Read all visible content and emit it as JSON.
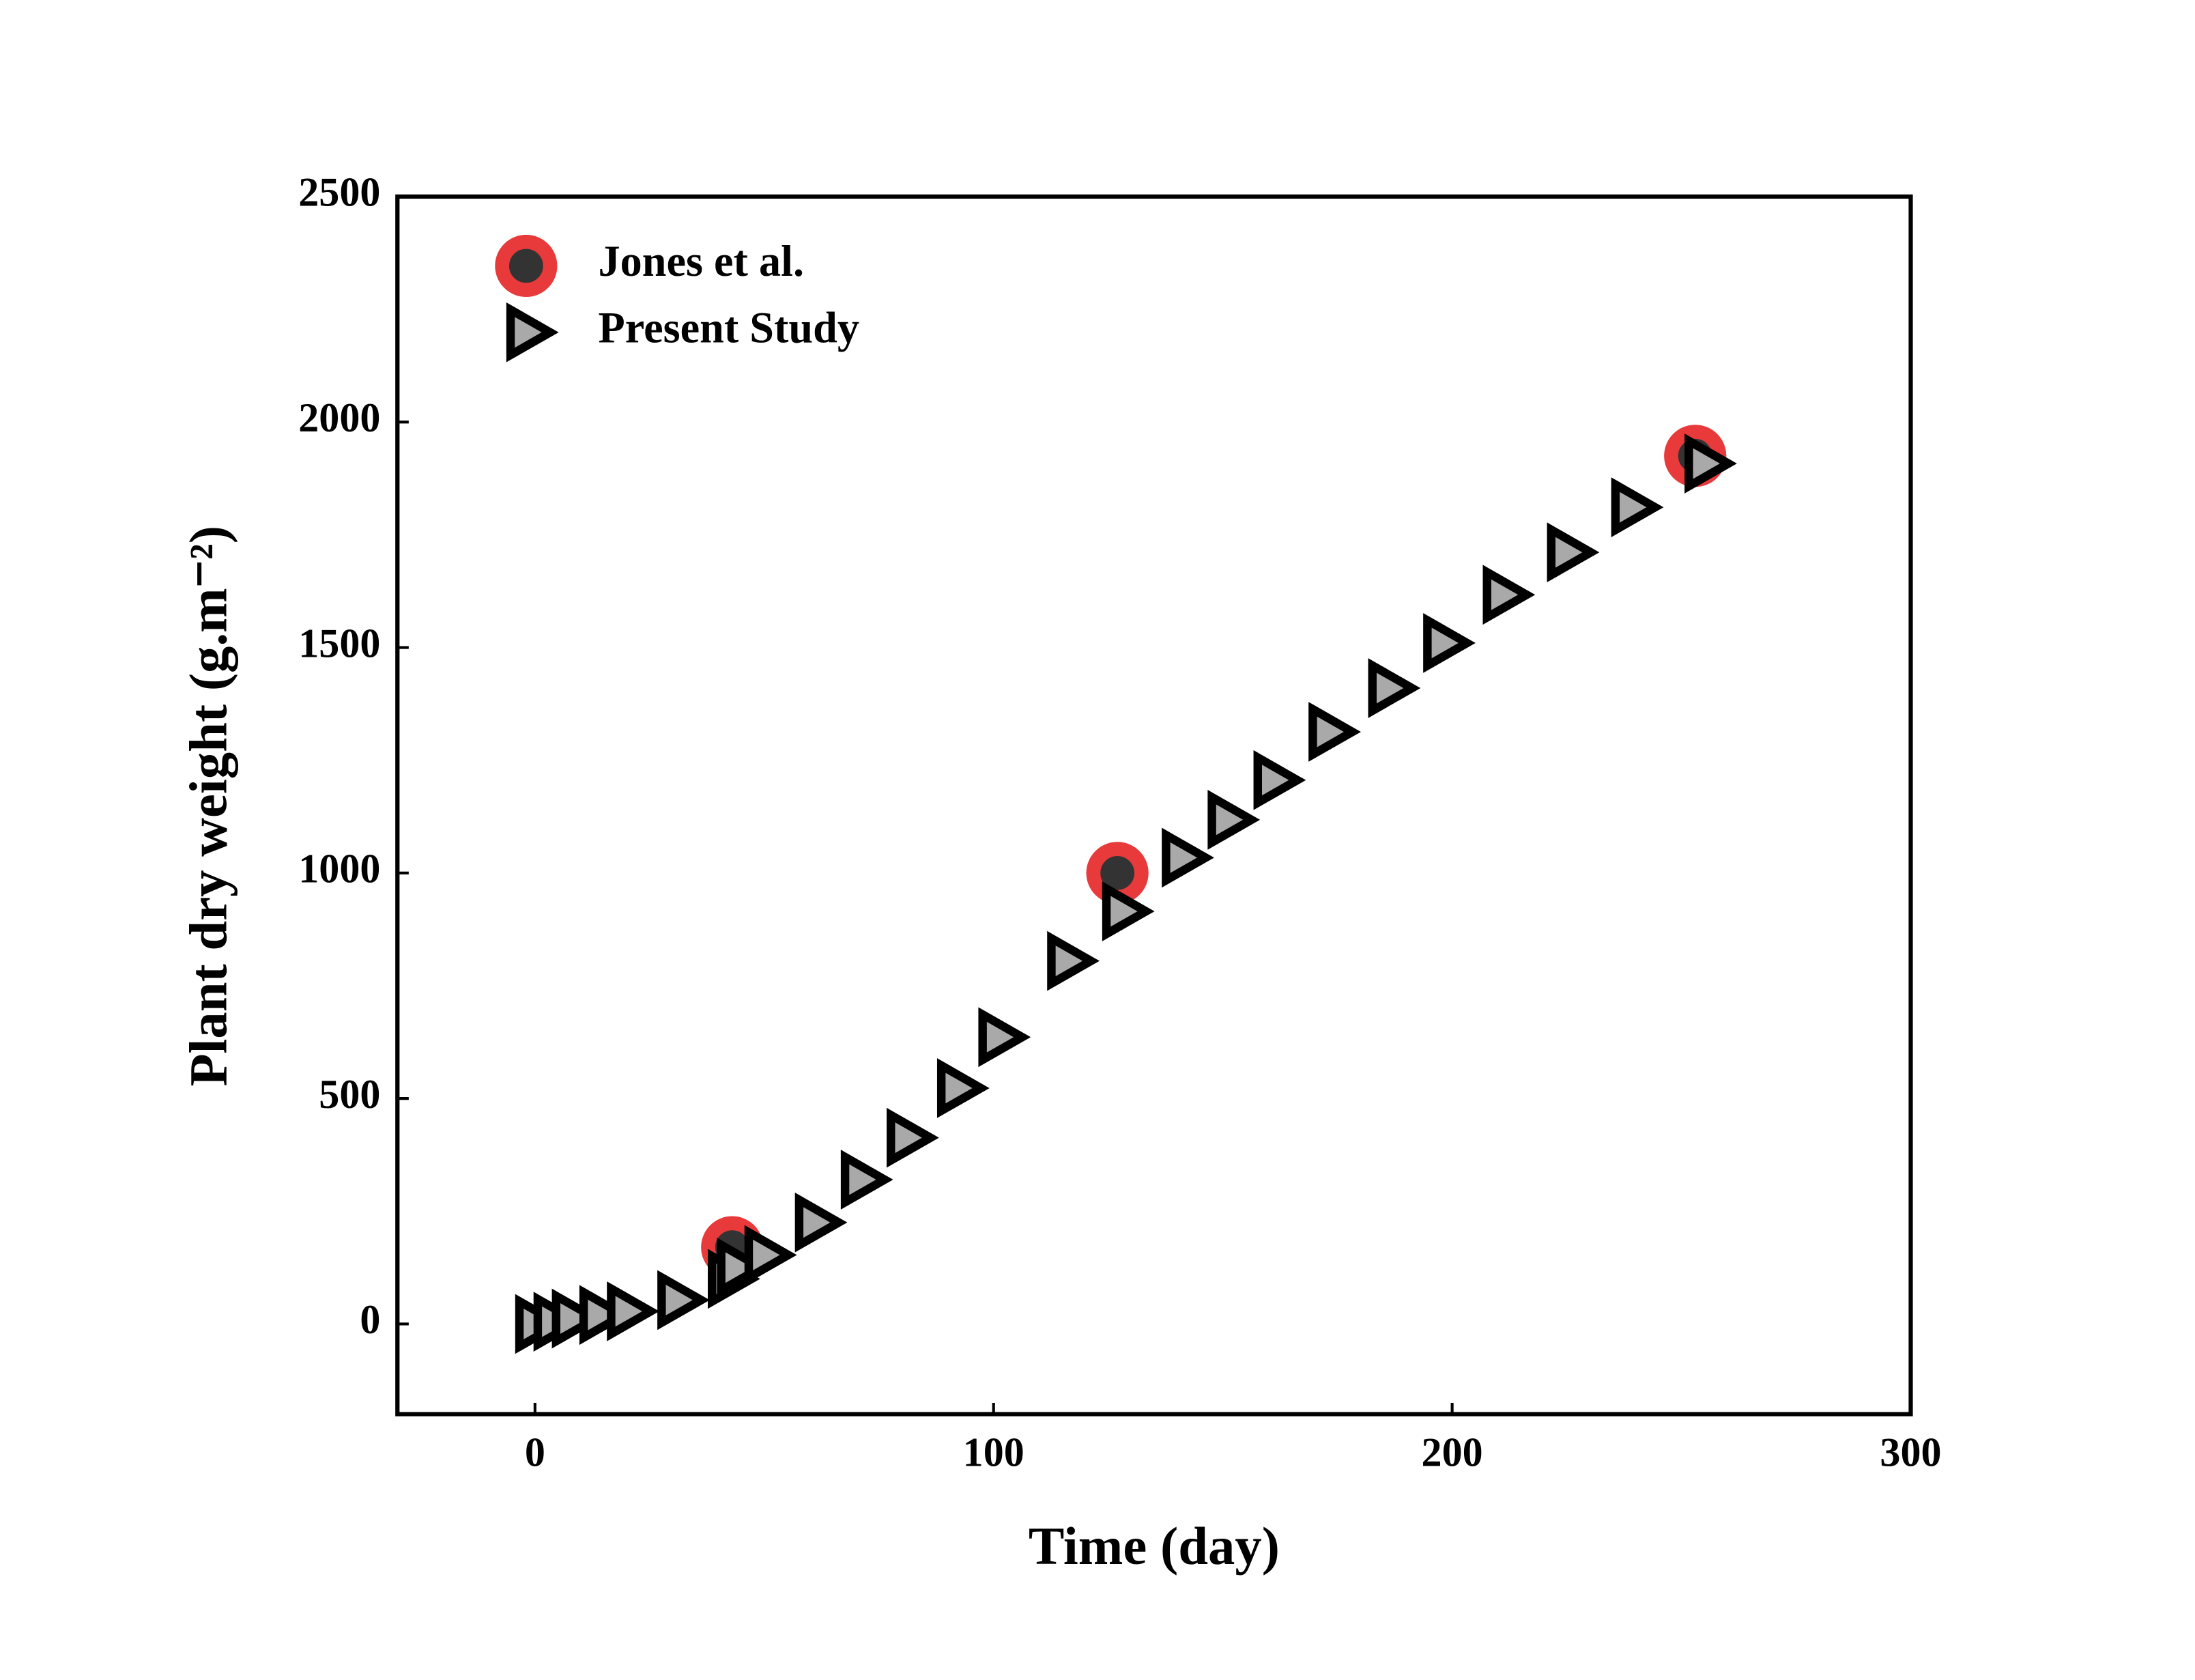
{
  "chart_data": {
    "type": "scatter",
    "x_label": "Time (day)",
    "y_label": "Plant dry weight (g.m⁻²)",
    "xlim": [
      -30,
      300
    ],
    "xticks": [
      0,
      100,
      200,
      300
    ],
    "ylim": [
      -200,
      2500
    ],
    "yticks": [
      0,
      500,
      1000,
      1500,
      2000,
      2500
    ],
    "legend": "upper-left",
    "series": [
      {
        "name": "Jones et al.",
        "color": "#e83a3a",
        "marker": "circle",
        "x": [
          43,
          127,
          253
        ],
        "values": [
          170,
          1000,
          1925
        ]
      },
      {
        "name": "Present Study",
        "color": "#a9a9a9",
        "marker": "triangle-right",
        "x": [
          0,
          4,
          8,
          14,
          20,
          31,
          42,
          44,
          50,
          61,
          71,
          81,
          92,
          101,
          116,
          128,
          141,
          151,
          161,
          173,
          186,
          198,
          211,
          225,
          239,
          255
        ],
        "values": [
          0,
          5,
          12,
          20,
          28,
          53,
          100,
          125,
          153,
          225,
          320,
          413,
          523,
          636,
          805,
          915,
          1034,
          1118,
          1206,
          1313,
          1410,
          1510,
          1617,
          1711,
          1811,
          1908
        ]
      }
    ]
  }
}
